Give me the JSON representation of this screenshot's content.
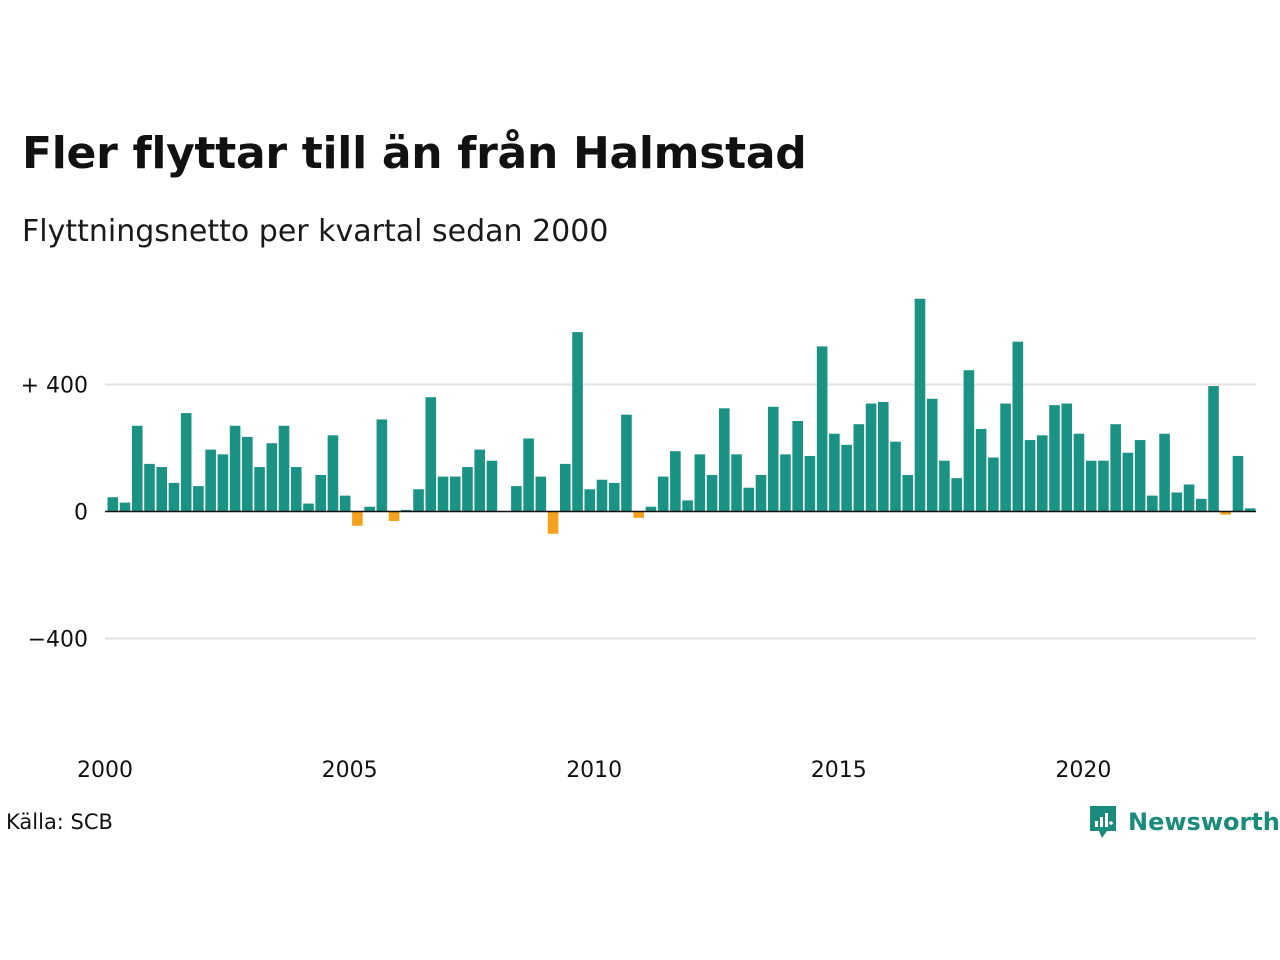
{
  "title": "Fler flyttar till än från Halmstad",
  "subtitle": "Flyttningsnetto per kvartal sedan 2000",
  "source": "Källa: SCB",
  "brand": "Newsworthy",
  "colors": {
    "positive": "#1a9384",
    "negative": "#f4a11d",
    "grid": "#e3e3e3",
    "brand": "#1a8b7c"
  },
  "chart_data": {
    "type": "bar",
    "title": "Fler flyttar till än från Halmstad",
    "subtitle": "Flyttningsnetto per kvartal sedan 2000",
    "xlabel": "",
    "ylabel": "",
    "x_start": 2000,
    "quarters_per_year": 4,
    "ylim": [
      -700,
      700
    ],
    "y_ticks": [
      {
        "value": 400,
        "label": "+ 400"
      },
      {
        "value": 0,
        "label": "0"
      },
      {
        "value": -400,
        "label": "−400"
      }
    ],
    "x_ticks": [
      {
        "value": 2000,
        "label": "2000"
      },
      {
        "value": 2005,
        "label": "2005"
      },
      {
        "value": 2010,
        "label": "2010"
      },
      {
        "value": 2015,
        "label": "2015"
      },
      {
        "value": 2020,
        "label": "2020"
      }
    ],
    "grid": true,
    "values": [
      45,
      28,
      270,
      150,
      140,
      90,
      310,
      80,
      195,
      180,
      270,
      235,
      140,
      215,
      270,
      140,
      25,
      115,
      240,
      50,
      -45,
      15,
      290,
      -30,
      5,
      70,
      360,
      110,
      110,
      140,
      195,
      160,
      0,
      80,
      230,
      110,
      -70,
      150,
      565,
      70,
      100,
      90,
      305,
      -20,
      15,
      110,
      190,
      35,
      180,
      115,
      325,
      180,
      75,
      115,
      330,
      180,
      285,
      175,
      520,
      245,
      210,
      275,
      340,
      345,
      220,
      115,
      670,
      355,
      160,
      105,
      445,
      260,
      170,
      340,
      535,
      225,
      240,
      335,
      340,
      245,
      160,
      160,
      275,
      185,
      225,
      50,
      245,
      60,
      85,
      40,
      395,
      -10,
      175,
      10
    ]
  }
}
